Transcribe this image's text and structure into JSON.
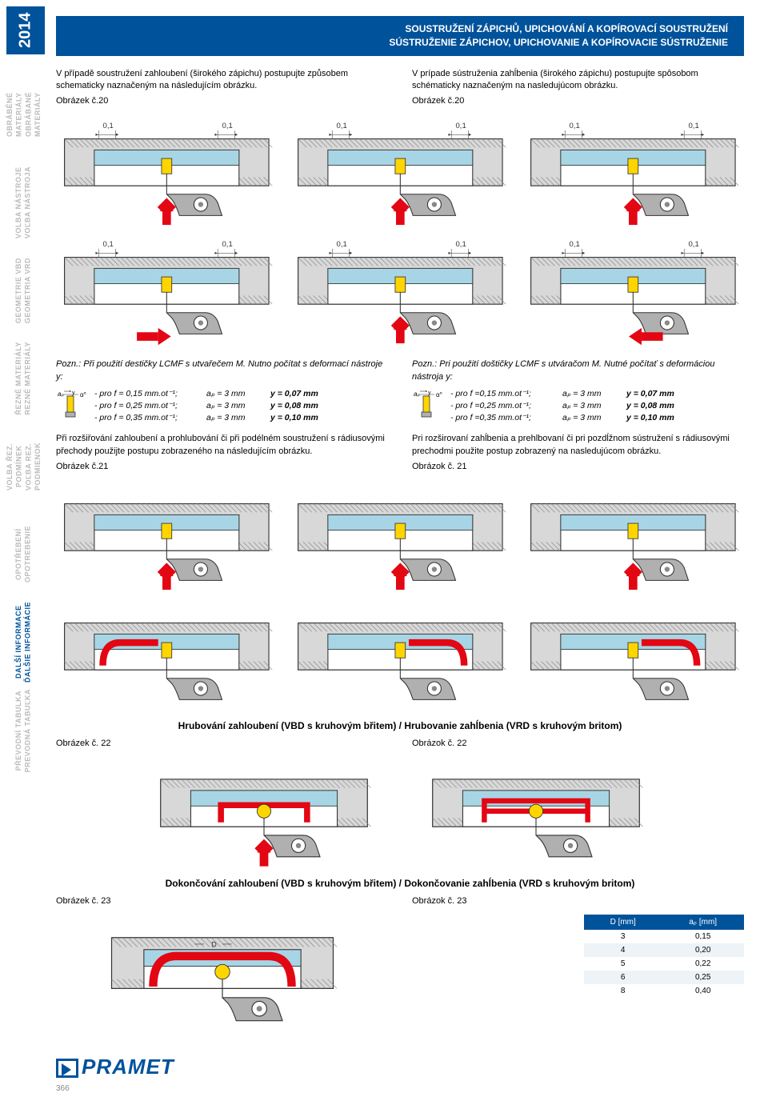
{
  "year": "2014",
  "sidebar": [
    {
      "cz": "OBRÁBĚNÉ MATERIÁLY",
      "sk": "OBRÁBANÉ MATERIÁLY",
      "active": false
    },
    {
      "cz": "VOLBA NÁSTROJE",
      "sk": "VOĽBA NÁSTROJA",
      "active": false
    },
    {
      "cz": "GEOMETRIE VBD",
      "sk": "GEOMETRIA VRD",
      "active": false
    },
    {
      "cz": "ŘEZNÉ MATERIÁLY",
      "sk": "REZNÉ MATERIÁLY",
      "active": false
    },
    {
      "cz": "VOLBA ŘEZ. PODMÍNEK",
      "sk": "VOĽBA REZ. PODMIENOK",
      "active": false
    },
    {
      "cz": "OPOTŘEBENÍ",
      "sk": "OPOTREBENIE",
      "active": false
    },
    {
      "cz": "DALŠÍ INFORMACE",
      "sk": "ĎALŠIE INFORMÁCIE",
      "active": true
    },
    {
      "cz": "PŘEVODNÍ TABULKA",
      "sk": "PREVODNÁ TABUĽKA",
      "active": false
    }
  ],
  "header": {
    "line1": "SOUSTRUŽENÍ ZÁPICHŮ, UPICHOVÁNÍ A KOPÍROVACÍ SOUSTRUŽENÍ",
    "line2": "SÚSTRUŽENIE ZÁPICHOV, UPICHOVANIE A KOPÍROVACIE SÚSTRUŽENIE"
  },
  "intro": {
    "cz": "V případě soustružení zahloubení (širokého zápichu) postupujte způsobem schematicky naznačeným na následujícím obrázku.",
    "sk": "V prípade sústruženia zahĺbenia (širokého zápichu) postupujte spôsobom schématicky naznačeným na nasledujúcom obrázku.",
    "fig_cz": "Obrázek č.20",
    "fig_sk": "Obrázek č.20"
  },
  "dim_label": "0,1",
  "note_cz": "Pozn.: Při použití destičky LCMF s utvařečem M. Nutno počítat s deformací nástroje y:",
  "note_sk": "Pozn.: Pri použití doštičky LCMF s utváračom M. Nutné počítať s deformáciou nástroja y:",
  "params": [
    {
      "f": "- pro f = 0,15 mm.ot⁻¹;",
      "ap": "aₚ = 3 mm",
      "y": "y = 0,07 mm"
    },
    {
      "f": "- pro f = 0,25 mm.ot⁻¹;",
      "ap": "aₚ = 3 mm",
      "y": "y = 0,08 mm"
    },
    {
      "f": "- pro f = 0,35 mm.ot⁻¹;",
      "ap": "aₚ = 3 mm",
      "y": "y = 0,10 mm"
    }
  ],
  "params_sk": [
    {
      "f": "- pro f =0,15 mm.ot⁻¹;",
      "ap": "aₚ = 3 mm",
      "y": "y = 0,07 mm"
    },
    {
      "f": "- pro f =0,25 mm.ot⁻¹;",
      "ap": "aₚ = 3 mm",
      "y": "y = 0,08 mm"
    },
    {
      "f": "- pro f =0,35 mm.ot⁻¹;",
      "ap": "aₚ = 3 mm",
      "y": "y = 0,10 mm"
    }
  ],
  "para2": {
    "cz": "Při rozšiřování zahloubení a prohlubování či při podélném soustružení s rádiusovými přechody použijte postupu zobrazeného na následujícím obrázku.",
    "sk": "Pri rozširovaní zahĺbenia a prehlbovaní či pri pozdĺžnom sústružení s rádiusovými prechodmi použite postup zobrazený na nasledujúcom obrázku.",
    "fig_cz": "Obrázek č.21",
    "fig_sk": "Obrázok č. 21"
  },
  "roughing_title": "Hrubování zahloubení (VBD s kruhovým břitem) / Hrubovanie zahĺbenia (VRD s kruhovým britom)",
  "roughing_fig_cz": "Obrázek č. 22",
  "roughing_fig_sk": "Obrázok č. 22",
  "finishing_title": "Dokončování zahloubení (VBD s kruhovým břitem) / Dokončovanie zahĺbenia (VRD s kruhovým britom)",
  "finishing_fig_cz": "Obrázek č. 23",
  "finishing_fig_sk": "Obrázok č. 23",
  "table": {
    "col1": "D [mm]",
    "col2": "aₚ [mm]",
    "rows": [
      [
        "3",
        "0,15"
      ],
      [
        "4",
        "0,20"
      ],
      [
        "5",
        "0,22"
      ],
      [
        "6",
        "0,25"
      ],
      [
        "8",
        "0,40"
      ]
    ]
  },
  "logo": "PRAMET",
  "page_num": "366",
  "colors": {
    "brand": "#00529b",
    "hatch": "#888888",
    "red": "#e30613",
    "yellow": "#ffd500",
    "lightblue": "#a8d5e5",
    "steel": "#b0b0b0"
  }
}
